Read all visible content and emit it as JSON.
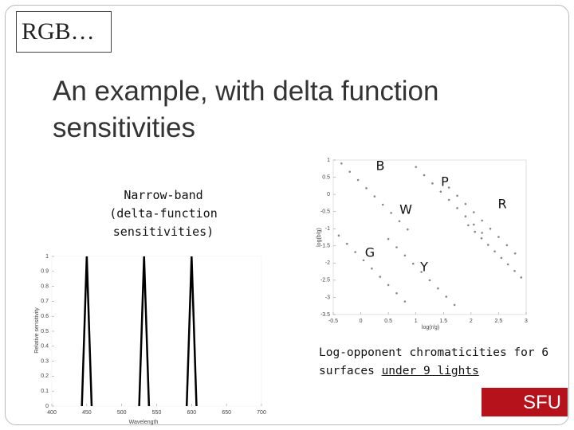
{
  "slide": {
    "title": "RGB…",
    "heading": "An example, with delta function sensitivities",
    "note": [
      "Narrow-band",
      "(delta-function",
      "sensitivities)"
    ],
    "caption": {
      "text": "Log-opponent chromaticities for 6 surfaces ",
      "underlined": "under 9 lights"
    },
    "logo": "SFU"
  },
  "chart_data": [
    {
      "type": "line",
      "xlabel": "Wavelength",
      "ylabel": "Relative sensitivity",
      "xlim": [
        400,
        700
      ],
      "xticks": [
        400,
        450,
        500,
        550,
        600,
        650,
        700
      ],
      "ylim": [
        0,
        1
      ],
      "yticks": [
        0,
        0.1,
        0.2,
        0.3,
        0.4,
        0.5,
        0.6,
        0.7,
        0.8,
        0.9,
        1
      ],
      "series": [
        {
          "color": "#000000",
          "x": [
            443,
            450,
            457
          ],
          "values": [
            0,
            1,
            0
          ]
        },
        {
          "color": "#000000",
          "x": [
            525,
            532,
            539
          ],
          "values": [
            0,
            1,
            0
          ]
        },
        {
          "color": "#000000",
          "x": [
            593,
            600,
            607
          ],
          "values": [
            0,
            1,
            0
          ]
        }
      ]
    },
    {
      "type": "scatter",
      "xlabel": "log(r/g)",
      "ylabel": "log(b/g)",
      "xlim": [
        -0.5,
        3
      ],
      "xticks": [
        -0.5,
        0,
        0.5,
        1,
        1.5,
        2,
        2.5,
        3
      ],
      "ylim": [
        -3.5,
        1
      ],
      "yticks": [
        1,
        0.5,
        0,
        -0.5,
        -1,
        -1.5,
        -2,
        -2.5,
        -3,
        -3.5
      ],
      "annotations": [
        "B",
        "P",
        "W",
        "R",
        "G",
        "Y"
      ],
      "series": [
        {
          "color": "#888888",
          "x": [
            -0.35,
            -0.2,
            -0.05,
            0.1,
            0.25,
            0.4,
            0.55,
            0.7,
            0.85
          ],
          "values": [
            0.9,
            0.66,
            0.42,
            0.18,
            -0.06,
            -0.3,
            -0.54,
            -0.78,
            -1.02
          ]
        },
        {
          "color": "#888888",
          "x": [
            1.0,
            1.15,
            1.3,
            1.45,
            1.6,
            1.75,
            1.9,
            2.05,
            2.2
          ],
          "values": [
            0.8,
            0.56,
            0.32,
            0.08,
            -0.16,
            -0.4,
            -0.64,
            -0.88,
            -1.12
          ]
        },
        {
          "color": "#888888",
          "x": [
            1.6,
            1.75,
            1.9,
            2.05,
            2.2,
            2.35,
            2.5,
            2.65,
            2.8
          ],
          "values": [
            0.2,
            -0.04,
            -0.28,
            -0.52,
            -0.76,
            -1,
            -1.24,
            -1.48,
            -1.72
          ]
        },
        {
          "color": "#888888",
          "x": [
            -0.4,
            -0.25,
            -0.1,
            0.05,
            0.2,
            0.35,
            0.5,
            0.65,
            0.8
          ],
          "values": [
            -1.2,
            -1.44,
            -1.68,
            -1.92,
            -2.16,
            -2.4,
            -2.64,
            -2.88,
            -3.12
          ]
        },
        {
          "color": "#888888",
          "x": [
            0.5,
            0.65,
            0.8,
            0.95,
            1.1,
            1.25,
            1.4,
            1.55,
            1.7
          ],
          "values": [
            -1.3,
            -1.54,
            -1.78,
            -2.02,
            -2.26,
            -2.5,
            -2.74,
            -2.98,
            -3.22
          ]
        },
        {
          "color": "#888888",
          "x": [
            1.95,
            2.07,
            2.19,
            2.31,
            2.43,
            2.55,
            2.67,
            2.79,
            2.91
          ],
          "values": [
            -0.9,
            -1.09,
            -1.28,
            -1.47,
            -1.66,
            -1.85,
            -2.04,
            -2.23,
            -2.42
          ]
        }
      ]
    }
  ]
}
